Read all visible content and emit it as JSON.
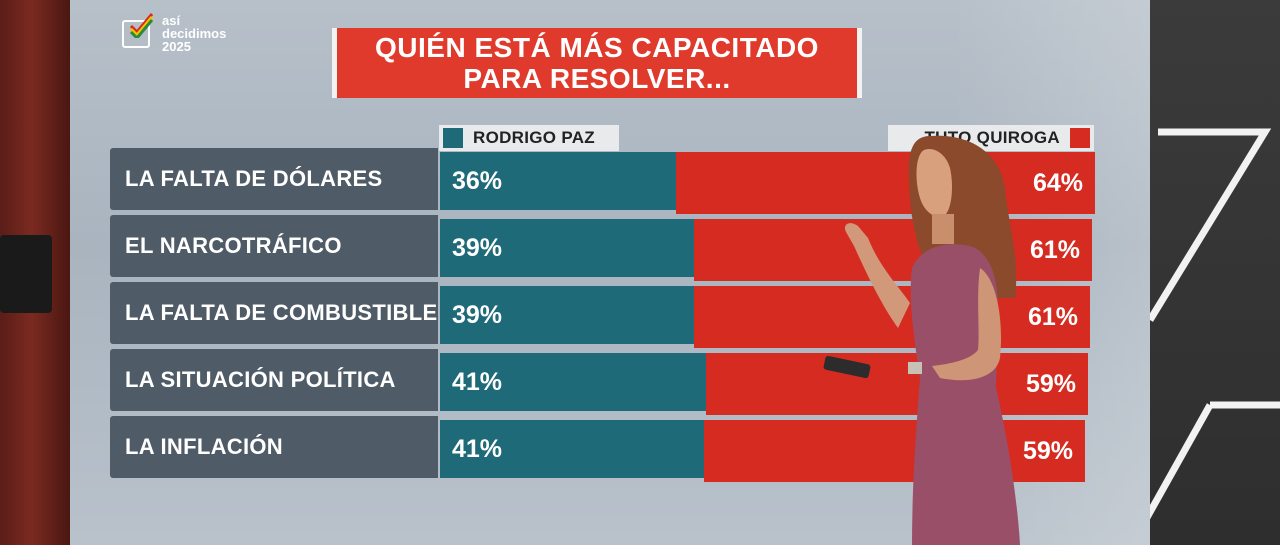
{
  "logo": {
    "lines": [
      "así",
      "decidimos",
      "2025"
    ]
  },
  "title": {
    "line1": "QUIÉN ESTÁ MÁS CAPACITADO",
    "line2": "PARA RESOLVER..."
  },
  "colors": {
    "paz": "#1f6a78",
    "quiroga": "#d62b20",
    "title_bg": "#e03a2c",
    "label_bg": "#4f5b66"
  },
  "chart_data": {
    "type": "bar",
    "orientation": "horizontal",
    "stacked": true,
    "title": "QUIÉN ESTÁ MÁS CAPACITADO PARA RESOLVER...",
    "categories": [
      "LA FALTA DE DÓLARES",
      "EL NARCOTRÁFICO",
      "LA FALTA DE COMBUSTIBLE",
      "LA SITUACIÓN POLÍTICA",
      "LA INFLACIÓN"
    ],
    "series": [
      {
        "name": "RODRIGO PAZ",
        "values": [
          36,
          39,
          39,
          41,
          41
        ],
        "labels": [
          "36%",
          "39%",
          "39%",
          "41%",
          "41%"
        ],
        "color": "#1f6a78"
      },
      {
        "name": "TUTO QUIROGA",
        "values": [
          64,
          61,
          61,
          59,
          59
        ],
        "labels": [
          "64%",
          "61%",
          "61%",
          "59%",
          "59%"
        ],
        "color": "#d62b20"
      }
    ],
    "xlim": [
      0,
      100
    ],
    "legend": "top"
  }
}
